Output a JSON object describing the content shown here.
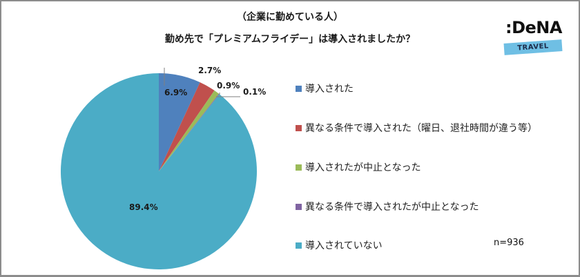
{
  "header": {
    "title_line1": "（企業に勤めている人）",
    "title_line2": "勤め先で「プレミアムフライデー」は導入されましたか？"
  },
  "logo": {
    "brand": ":DeNA",
    "sub": "TRAVEL",
    "colors": {
      "text": "#111111",
      "band": "#6fbfe4"
    }
  },
  "legend": {
    "items": [
      {
        "label": "導入された",
        "color": "#4f81bd"
      },
      {
        "label": "異なる条件で導入された（曜日、退社時間が違う等）",
        "color": "#c0504d"
      },
      {
        "label": "導入されたが中止となった",
        "color": "#9bbb59"
      },
      {
        "label": "異なる条件で導入されたが中止となった",
        "color": "#8064a2"
      },
      {
        "label": "導入されていない",
        "color": "#4bacc6"
      }
    ]
  },
  "sample_size": "n=936",
  "slice_labels": [
    "6.9%",
    "2.7%",
    "0.9%",
    "0.1%",
    "89.4%"
  ],
  "chart_data": {
    "type": "pie",
    "title": "（企業に勤めている人） 勤め先で「プレミアムフライデー」は導入されましたか？",
    "categories": [
      "導入された",
      "異なる条件で導入された（曜日、退社時間が違う等）",
      "導入されたが中止となった",
      "異なる条件で導入されたが中止となった",
      "導入されていない"
    ],
    "values": [
      6.9,
      2.7,
      0.9,
      0.1,
      89.4
    ],
    "unit": "%",
    "colors": [
      "#4f81bd",
      "#c0504d",
      "#9bbb59",
      "#8064a2",
      "#4bacc6"
    ],
    "start_angle": "12 o'clock, clockwise",
    "legend_position": "right",
    "annotation": "n=936"
  }
}
